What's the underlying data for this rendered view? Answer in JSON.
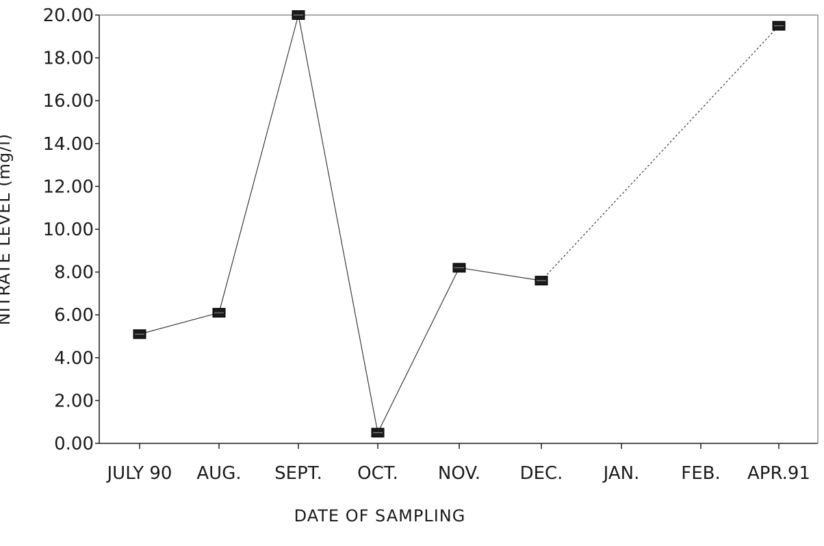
{
  "chart_data": {
    "type": "line",
    "title": "",
    "xlabel": "DATE OF SAMPLING",
    "ylabel": "NITRATE LEVEL (mg/l)",
    "categories": [
      "JULY 90",
      "AUG.",
      "SEPT.",
      "OCT.",
      "NOV.",
      "DEC.",
      "JAN.",
      "FEB.",
      "APR.91"
    ],
    "ylim": [
      0,
      20
    ],
    "yticks": [
      "0.00",
      "2.00",
      "4.00",
      "6.00",
      "8.00",
      "10.00",
      "12.00",
      "14.00",
      "16.00",
      "18.00",
      "20.00"
    ],
    "grid": false,
    "series": [
      {
        "x": [
          "JULY 90",
          "AUG.",
          "SEPT.",
          "OCT.",
          "NOV.",
          "DEC.",
          "APR.91"
        ],
        "values": [
          5.1,
          6.1,
          20.0,
          0.5,
          8.2,
          7.6,
          19.5
        ],
        "marker": "filled-square"
      }
    ],
    "colors": {
      "line": "#3a3a3a",
      "marker": "#1a1a1a",
      "axis": "#1a1a1a"
    }
  }
}
